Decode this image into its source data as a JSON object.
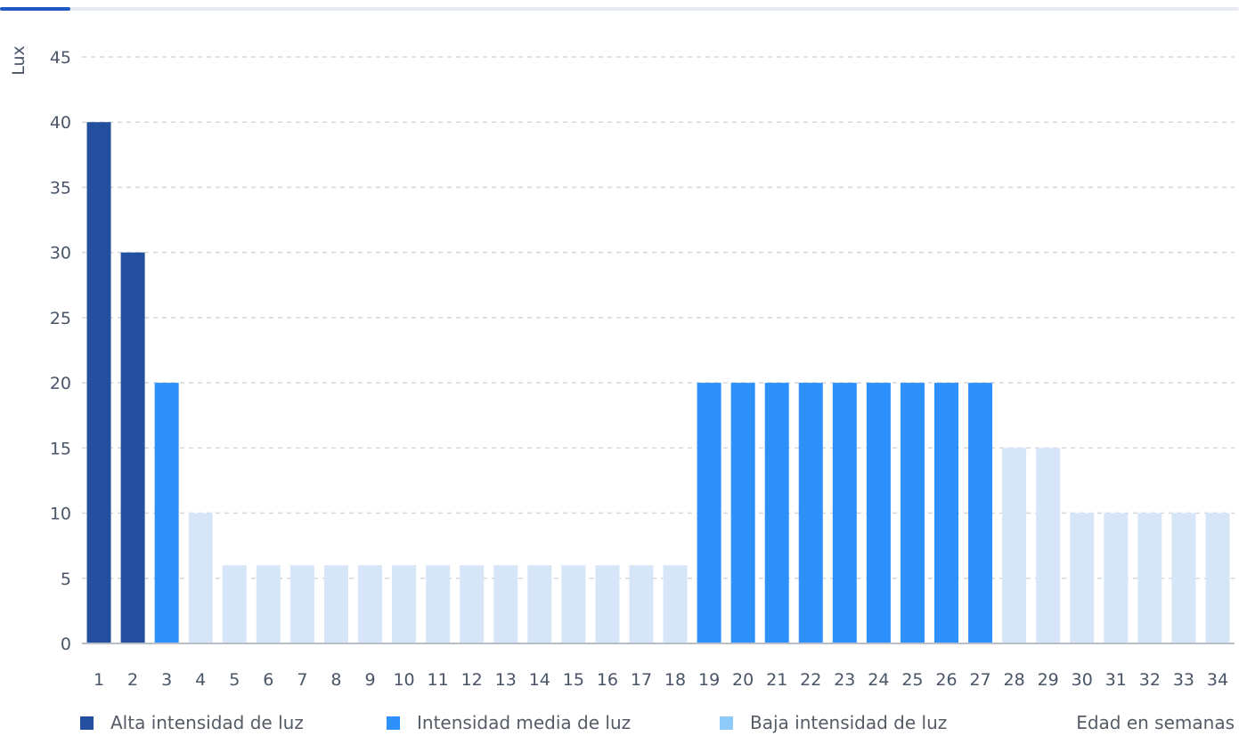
{
  "progress": {
    "value": 0.057,
    "color": "#1f57c3"
  },
  "chart_data": {
    "type": "bar",
    "title": "",
    "xlabel": "Edad en semanas",
    "ylabel": "Lux",
    "ylim": [
      0,
      45
    ],
    "yticks": [
      0,
      5,
      10,
      15,
      20,
      25,
      30,
      35,
      40,
      45
    ],
    "grid": true,
    "legend_position": "bottom",
    "categories": [
      "1",
      "2",
      "3",
      "4",
      "5",
      "6",
      "7",
      "8",
      "9",
      "10",
      "11",
      "12",
      "13",
      "14",
      "15",
      "16",
      "17",
      "18",
      "19",
      "20",
      "21",
      "22",
      "23",
      "24",
      "25",
      "26",
      "27",
      "28",
      "29",
      "30",
      "31",
      "32",
      "33",
      "34"
    ],
    "values": [
      40,
      30,
      20,
      10,
      6,
      6,
      6,
      6,
      6,
      6,
      6,
      6,
      6,
      6,
      6,
      6,
      6,
      6,
      20,
      20,
      20,
      20,
      20,
      20,
      20,
      20,
      20,
      15,
      15,
      10,
      10,
      10,
      10,
      10
    ],
    "groups": [
      "alta",
      "alta",
      "media",
      "baja",
      "baja",
      "baja",
      "baja",
      "baja",
      "baja",
      "baja",
      "baja",
      "baja",
      "baja",
      "baja",
      "baja",
      "baja",
      "baja",
      "baja",
      "media",
      "media",
      "media",
      "media",
      "media",
      "media",
      "media",
      "media",
      "media",
      "baja",
      "baja",
      "baja",
      "baja",
      "baja",
      "baja",
      "baja"
    ],
    "legend": [
      {
        "key": "alta",
        "label": "Alta intensidad de luz",
        "bar_color": "#234f9e",
        "swatch_color": "#234f9e"
      },
      {
        "key": "media",
        "label": "Intensidad media de luz",
        "bar_color": "#2e90fa",
        "swatch_color": "#2e90fa"
      },
      {
        "key": "baja",
        "label": "Baja intensidad de luz",
        "bar_color": "#d6e6f8",
        "swatch_color": "#8ecbfb"
      }
    ]
  }
}
